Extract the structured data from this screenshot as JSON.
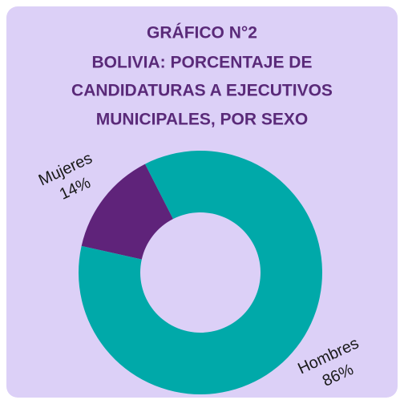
{
  "chart_data": {
    "type": "pie",
    "title": "GRÁFICO N°2",
    "subtitle": [
      "BOLIVIA: PORCENTAJE DE",
      "CANDIDATURAS A EJECUTIVOS",
      "MUNICIPALES, POR SEXO"
    ],
    "categories": [
      "Mujeres",
      "Hombres"
    ],
    "values": [
      14,
      86
    ],
    "value_labels": [
      "14%",
      "86%"
    ],
    "colors": [
      "#5f237a",
      "#00a9a9"
    ]
  }
}
